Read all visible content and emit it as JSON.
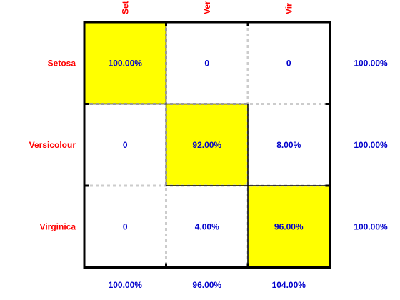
{
  "chart_data": {
    "type": "heatmap",
    "rows": [
      "Setosa",
      "Versicolour",
      "Virginica"
    ],
    "columns": [
      "Setosa",
      "Versicolour",
      "Virginica"
    ],
    "column_labels_visible": [
      "Set",
      "Ver",
      "Vir"
    ],
    "values": [
      [
        "100.00%",
        "0",
        "0"
      ],
      [
        "0",
        "92.00%",
        "8.00%"
      ],
      [
        "0",
        "4.00%",
        "96.00%"
      ]
    ],
    "row_totals": [
      "100.00%",
      "100.00%",
      "100.00%"
    ],
    "column_totals": [
      "100.00%",
      "96.00%",
      "104.00%"
    ],
    "highlight": "diagonal",
    "colors": {
      "highlight_fill": "#ffff00",
      "label_color": "#ff0000",
      "value_color": "#0000cc",
      "border": "#000000",
      "grid": "#cccccc"
    }
  }
}
